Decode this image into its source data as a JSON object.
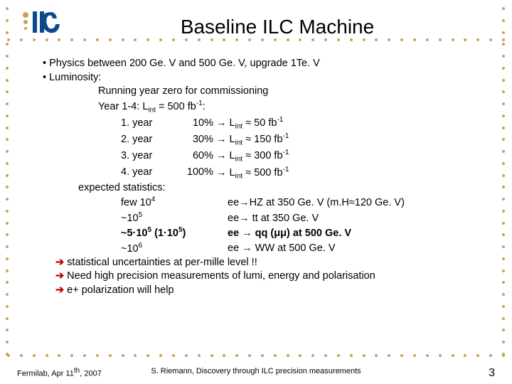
{
  "title": "Baseline ILC Machine",
  "bullets": {
    "b1": "Physics between 200 Ge. V and 500 Ge. V, upgrade 1Te. V",
    "b2": "Luminosity:"
  },
  "lum": {
    "l1": "Running year zero for commissioning",
    "l2a": "Year 1-4: L",
    "l2b": " = 500 fb",
    "l2c": ":",
    "y1a": "1. year",
    "y1p": "10%",
    "y1arr": " → L",
    "y1b": " ≈   50 fb",
    "y2a": "2. year",
    "y2p": "30%",
    "y2arr": " → L",
    "y2b": " ≈ 150 fb",
    "y3a": "3. year",
    "y3p": "60%",
    "y3arr": " → L",
    "y3b": " ≈ 300 fb",
    "y4a": "4. year",
    "y4p": "100%",
    "y4arr": " → L",
    "y4b": " ≈ 500 fb"
  },
  "stats": {
    "head": "expected statistics:",
    "r1a": "few 10",
    "r1b": "ee→HZ  at 350 Ge. V (m.H≈120 Ge. V)",
    "r2a": "~10",
    "r2b": "ee→ tt   at 350 Ge. V",
    "r3a": "~5·10",
    "r3m": " (1·10",
    "r3c": ")",
    "r3b": "ee → qq (μμ)  at 500 Ge. V",
    "r4a": "~10",
    "r4b": "ee → WW  at 500 Ge. V"
  },
  "arrows": {
    "a1": " statistical uncertainties at per-mille level !!",
    "a2": " Need high precision measurements of lumi, energy and polarisation",
    "a3": " e+ polarization will help"
  },
  "footer": {
    "left_a": "Fermilab, Apr 11",
    "left_b": ", 2007",
    "center": "S. Riemann, Discovery through ILC precision measurements",
    "page": "3"
  },
  "sub_int": "int",
  "sup_neg1": "-1",
  "sup4": "4",
  "sup5": "5",
  "sup6": "6",
  "sup_th": "th",
  "arrow_glyph": "➔"
}
